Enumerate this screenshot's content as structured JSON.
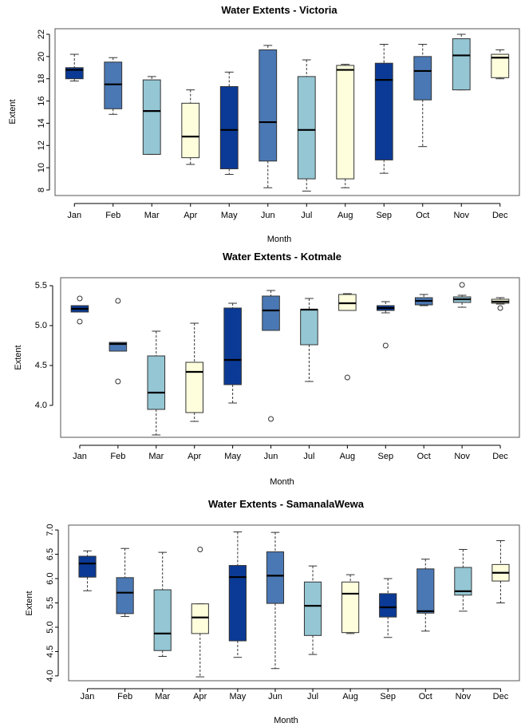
{
  "colors": {
    "navy": "#0b3a96",
    "steel": "#4a78b4",
    "lightblue": "#94c6d4",
    "cream": "#fefedd"
  },
  "chart_data": [
    {
      "type": "box",
      "title": "Water Extents -  Victoria",
      "xlabel": "Month",
      "ylabel": "Extent",
      "ylim": [
        7.5,
        22.5
      ],
      "yticks": [
        8,
        10,
        12,
        14,
        16,
        18,
        20,
        22
      ],
      "categories": [
        "Jan",
        "Feb",
        "Mar",
        "Apr",
        "May",
        "Jun",
        "Jul",
        "Aug",
        "Sep",
        "Oct",
        "Nov",
        "Dec"
      ],
      "box_colors": [
        "navy",
        "steel",
        "lightblue",
        "cream",
        "navy",
        "steel",
        "lightblue",
        "cream",
        "navy",
        "steel",
        "lightblue",
        "cream"
      ],
      "boxes": [
        {
          "min": 17.8,
          "q1": 18.0,
          "median": 18.8,
          "q3": 19.0,
          "max": 20.2,
          "outliers": []
        },
        {
          "min": 14.8,
          "q1": 15.3,
          "median": 17.5,
          "q3": 19.5,
          "max": 19.9,
          "outliers": []
        },
        {
          "min": 11.2,
          "q1": 11.2,
          "median": 15.1,
          "q3": 17.9,
          "max": 18.2,
          "outliers": []
        },
        {
          "min": 10.3,
          "q1": 10.9,
          "median": 12.8,
          "q3": 15.8,
          "max": 17.0,
          "outliers": []
        },
        {
          "min": 9.4,
          "q1": 9.9,
          "median": 13.4,
          "q3": 17.3,
          "max": 18.6,
          "outliers": []
        },
        {
          "min": 8.2,
          "q1": 10.6,
          "median": 14.1,
          "q3": 20.6,
          "max": 21.0,
          "outliers": []
        },
        {
          "min": 7.9,
          "q1": 9.0,
          "median": 13.4,
          "q3": 18.2,
          "max": 19.7,
          "outliers": []
        },
        {
          "min": 8.2,
          "q1": 9.0,
          "median": 18.8,
          "q3": 19.2,
          "max": 19.3,
          "outliers": []
        },
        {
          "min": 9.5,
          "q1": 10.7,
          "median": 17.9,
          "q3": 19.4,
          "max": 21.1,
          "outliers": []
        },
        {
          "min": 11.9,
          "q1": 16.1,
          "median": 18.7,
          "q3": 20.0,
          "max": 21.1,
          "outliers": []
        },
        {
          "min": 17.0,
          "q1": 17.0,
          "median": 20.1,
          "q3": 21.6,
          "max": 22.0,
          "outliers": []
        },
        {
          "min": 18.0,
          "q1": 18.1,
          "median": 19.9,
          "q3": 20.2,
          "max": 20.6,
          "outliers": []
        }
      ]
    },
    {
      "type": "box",
      "title": "Water Extents -  Kotmale",
      "xlabel": "Month",
      "ylabel": "Extent",
      "ylim": [
        3.6,
        5.6
      ],
      "yticks": [
        4.0,
        4.5,
        5.0,
        5.5
      ],
      "ytick_labels": [
        "4.0",
        "4.5",
        "5.0",
        "5.5"
      ],
      "categories": [
        "Jan",
        "Feb",
        "Mar",
        "Apr",
        "May",
        "Jun",
        "Jul",
        "Aug",
        "Sep",
        "Oct",
        "Nov",
        "Dec"
      ],
      "box_colors": [
        "navy",
        "steel",
        "lightblue",
        "cream",
        "navy",
        "steel",
        "lightblue",
        "cream",
        "navy",
        "steel",
        "lightblue",
        "cream"
      ],
      "boxes": [
        {
          "min": 5.17,
          "q1": 5.17,
          "median": 5.21,
          "q3": 5.25,
          "max": 5.25,
          "outliers": [
            5.34,
            5.05
          ]
        },
        {
          "min": 4.68,
          "q1": 4.68,
          "median": 4.77,
          "q3": 4.79,
          "max": 4.79,
          "outliers": [
            5.31,
            4.3
          ]
        },
        {
          "min": 3.63,
          "q1": 3.95,
          "median": 4.16,
          "q3": 4.62,
          "max": 4.93,
          "outliers": []
        },
        {
          "min": 3.8,
          "q1": 3.91,
          "median": 4.42,
          "q3": 4.54,
          "max": 5.03,
          "outliers": []
        },
        {
          "min": 4.03,
          "q1": 4.26,
          "median": 4.57,
          "q3": 5.22,
          "max": 5.28,
          "outliers": []
        },
        {
          "min": 4.94,
          "q1": 4.94,
          "median": 5.19,
          "q3": 5.37,
          "max": 5.44,
          "outliers": [
            3.83
          ]
        },
        {
          "min": 4.3,
          "q1": 4.76,
          "median": 5.2,
          "q3": 5.2,
          "max": 5.34,
          "outliers": []
        },
        {
          "min": 5.19,
          "q1": 5.19,
          "median": 5.28,
          "q3": 5.39,
          "max": 5.4,
          "outliers": [
            4.35
          ]
        },
        {
          "min": 5.16,
          "q1": 5.19,
          "median": 5.22,
          "q3": 5.25,
          "max": 5.3,
          "outliers": [
            4.75
          ]
        },
        {
          "min": 5.25,
          "q1": 5.26,
          "median": 5.31,
          "q3": 5.35,
          "max": 5.39,
          "outliers": []
        },
        {
          "min": 5.23,
          "q1": 5.29,
          "median": 5.33,
          "q3": 5.36,
          "max": 5.38,
          "outliers": [
            5.51
          ]
        },
        {
          "min": 5.27,
          "q1": 5.28,
          "median": 5.3,
          "q3": 5.33,
          "max": 5.35,
          "outliers": [
            5.22
          ]
        }
      ]
    },
    {
      "type": "box",
      "title": "Water Extents -  SamanalaWewa",
      "xlabel": "Month",
      "ylabel": "Extent",
      "ylim": [
        3.9,
        7.1
      ],
      "yticks": [
        4.0,
        4.5,
        5.0,
        5.5,
        6.0,
        6.5,
        7.0
      ],
      "ytick_labels": [
        "4.0",
        "4.5",
        "5.0",
        "5.5",
        "6.0",
        "6.5",
        "7.0"
      ],
      "categories": [
        "Jan",
        "Feb",
        "Mar",
        "Apr",
        "May",
        "Jun",
        "Jul",
        "Aug",
        "Sep",
        "Oct",
        "Nov",
        "Dec"
      ],
      "box_colors": [
        "navy",
        "steel",
        "lightblue",
        "cream",
        "navy",
        "steel",
        "lightblue",
        "cream",
        "navy",
        "steel",
        "lightblue",
        "cream"
      ],
      "boxes": [
        {
          "min": 5.75,
          "q1": 6.03,
          "median": 6.31,
          "q3": 6.46,
          "max": 6.57,
          "outliers": []
        },
        {
          "min": 5.22,
          "q1": 5.28,
          "median": 5.71,
          "q3": 6.02,
          "max": 6.62,
          "outliers": []
        },
        {
          "min": 4.4,
          "q1": 4.52,
          "median": 4.87,
          "q3": 5.77,
          "max": 6.54,
          "outliers": []
        },
        {
          "min": 3.98,
          "q1": 4.87,
          "median": 5.2,
          "q3": 5.48,
          "max": 5.48,
          "outliers": [
            6.6
          ]
        },
        {
          "min": 4.38,
          "q1": 4.72,
          "median": 6.03,
          "q3": 6.27,
          "max": 6.96,
          "outliers": []
        },
        {
          "min": 4.15,
          "q1": 5.49,
          "median": 6.06,
          "q3": 6.55,
          "max": 6.95,
          "outliers": []
        },
        {
          "min": 4.44,
          "q1": 4.83,
          "median": 5.44,
          "q3": 5.93,
          "max": 6.26,
          "outliers": []
        },
        {
          "min": 4.87,
          "q1": 4.89,
          "median": 5.69,
          "q3": 5.93,
          "max": 6.08,
          "outliers": []
        },
        {
          "min": 4.79,
          "q1": 5.21,
          "median": 5.41,
          "q3": 5.69,
          "max": 6.0,
          "outliers": []
        },
        {
          "min": 4.92,
          "q1": 5.29,
          "median": 5.33,
          "q3": 6.2,
          "max": 6.4,
          "outliers": []
        },
        {
          "min": 5.33,
          "q1": 5.66,
          "median": 5.74,
          "q3": 6.23,
          "max": 6.6,
          "outliers": []
        },
        {
          "min": 5.5,
          "q1": 5.95,
          "median": 6.12,
          "q3": 6.29,
          "max": 6.78,
          "outliers": []
        }
      ]
    }
  ]
}
